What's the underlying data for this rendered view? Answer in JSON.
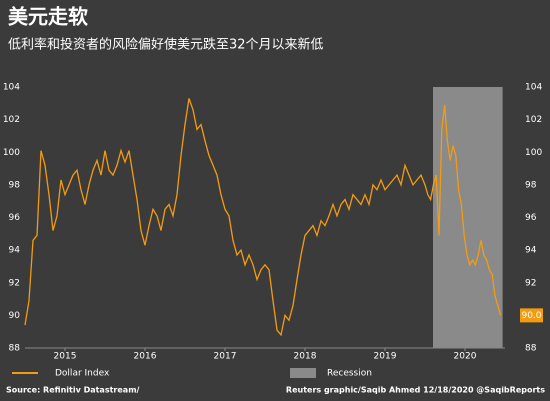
{
  "chart_data": {
    "type": "line",
    "title": "美元走软",
    "subtitle": "低利率和投资者的风险偏好使美元跌至32个月以来新低",
    "x": [
      2015.0,
      2015.05,
      2015.1,
      2015.15,
      2015.2,
      2015.25,
      2015.3,
      2015.35,
      2015.4,
      2015.45,
      2015.5,
      2015.55,
      2015.6,
      2015.65,
      2015.7,
      2015.75,
      2015.8,
      2015.85,
      2015.9,
      2015.95,
      2016.0,
      2016.05,
      2016.1,
      2016.15,
      2016.2,
      2016.25,
      2016.3,
      2016.35,
      2016.4,
      2016.45,
      2016.5,
      2016.55,
      2016.6,
      2016.65,
      2016.7,
      2016.75,
      2016.8,
      2016.85,
      2016.9,
      2016.95,
      2017.0,
      2017.05,
      2017.1,
      2017.15,
      2017.2,
      2017.25,
      2017.3,
      2017.35,
      2017.4,
      2017.45,
      2017.5,
      2017.55,
      2017.6,
      2017.65,
      2017.7,
      2017.75,
      2017.8,
      2017.85,
      2017.9,
      2017.95,
      2018.0,
      2018.05,
      2018.1,
      2018.15,
      2018.2,
      2018.25,
      2018.3,
      2018.35,
      2018.4,
      2018.45,
      2018.5,
      2018.55,
      2018.6,
      2018.65,
      2018.7,
      2018.75,
      2018.8,
      2018.85,
      2018.9,
      2018.95,
      2019.0,
      2019.05,
      2019.1,
      2019.15,
      2019.2,
      2019.25,
      2019.3,
      2019.35,
      2019.4,
      2019.45,
      2019.5,
      2019.55,
      2019.6,
      2019.65,
      2019.7,
      2019.75,
      2019.8,
      2019.85,
      2019.9,
      2019.95,
      2020.0,
      2020.035,
      2020.07,
      2020.105,
      2020.14,
      2020.175,
      2020.21,
      2020.245,
      2020.28,
      2020.315,
      2020.35,
      2020.385,
      2020.42,
      2020.455,
      2020.49,
      2020.525,
      2020.56,
      2020.595,
      2020.63,
      2020.665,
      2020.7,
      2020.735,
      2020.77,
      2020.805,
      2020.84,
      2020.875,
      2020.91,
      2020.945
    ],
    "series": [
      {
        "name": "Dollar Index",
        "color": "#f39c12",
        "values": [
          89.4,
          90.9,
          94.6,
          94.9,
          100.1,
          99.2,
          97.4,
          95.2,
          96.1,
          98.3,
          97.4,
          98.0,
          98.6,
          98.9,
          97.7,
          96.8,
          98.0,
          98.9,
          99.5,
          98.6,
          100.1,
          98.9,
          98.6,
          99.2,
          100.1,
          99.4,
          100.1,
          98.6,
          97.1,
          95.2,
          94.3,
          95.5,
          96.5,
          96.1,
          95.2,
          96.5,
          96.8,
          96.1,
          97.4,
          99.8,
          101.7,
          103.3,
          102.6,
          101.4,
          101.7,
          100.7,
          99.8,
          99.2,
          98.6,
          97.4,
          96.5,
          96.1,
          94.6,
          93.7,
          94.0,
          93.1,
          93.7,
          93.1,
          92.2,
          92.8,
          93.1,
          92.8,
          90.9,
          89.1,
          88.8,
          90.0,
          89.7,
          90.6,
          92.2,
          93.7,
          94.9,
          95.2,
          95.5,
          94.9,
          95.8,
          95.5,
          96.1,
          96.8,
          96.1,
          96.8,
          97.1,
          96.5,
          97.4,
          97.1,
          96.8,
          97.4,
          96.8,
          98.0,
          97.7,
          98.3,
          97.7,
          98.0,
          98.3,
          98.6,
          98.0,
          99.2,
          98.6,
          98.0,
          98.3,
          98.6,
          98.0,
          97.4,
          97.1,
          98.0,
          98.6,
          94.9,
          101.4,
          102.9,
          100.7,
          99.5,
          100.4,
          99.8,
          97.7,
          96.8,
          94.9,
          93.7,
          93.1,
          93.4,
          93.1,
          93.7,
          94.6,
          93.7,
          93.4,
          92.8,
          92.5,
          91.2,
          90.6,
          90.0
        ],
        "value_labels": {
          "127": "90.0"
        }
      }
    ],
    "recession": {
      "name": "Recession",
      "range": [
        2020.1,
        2020.97
      ],
      "color": "#8a8a8a"
    },
    "xlim": [
      2015.0,
      2021.0
    ],
    "xticks": [
      {
        "value": 2015.5,
        "label": "2015"
      },
      {
        "value": 2016.5,
        "label": "2016"
      },
      {
        "value": 2017.5,
        "label": "2017"
      },
      {
        "value": 2018.5,
        "label": "2018"
      },
      {
        "value": 2019.5,
        "label": "2019"
      },
      {
        "value": 2020.5,
        "label": "2020"
      }
    ],
    "ylim": [
      88,
      104
    ],
    "yticks": [
      88,
      90,
      92,
      94,
      96,
      98,
      100,
      102,
      104
    ],
    "grid": false,
    "source": "Source: Refinitiv Datastream/",
    "credit": "Reuters graphic/Saqib Ahmed 12/18/2020 @SaqibReports"
  }
}
